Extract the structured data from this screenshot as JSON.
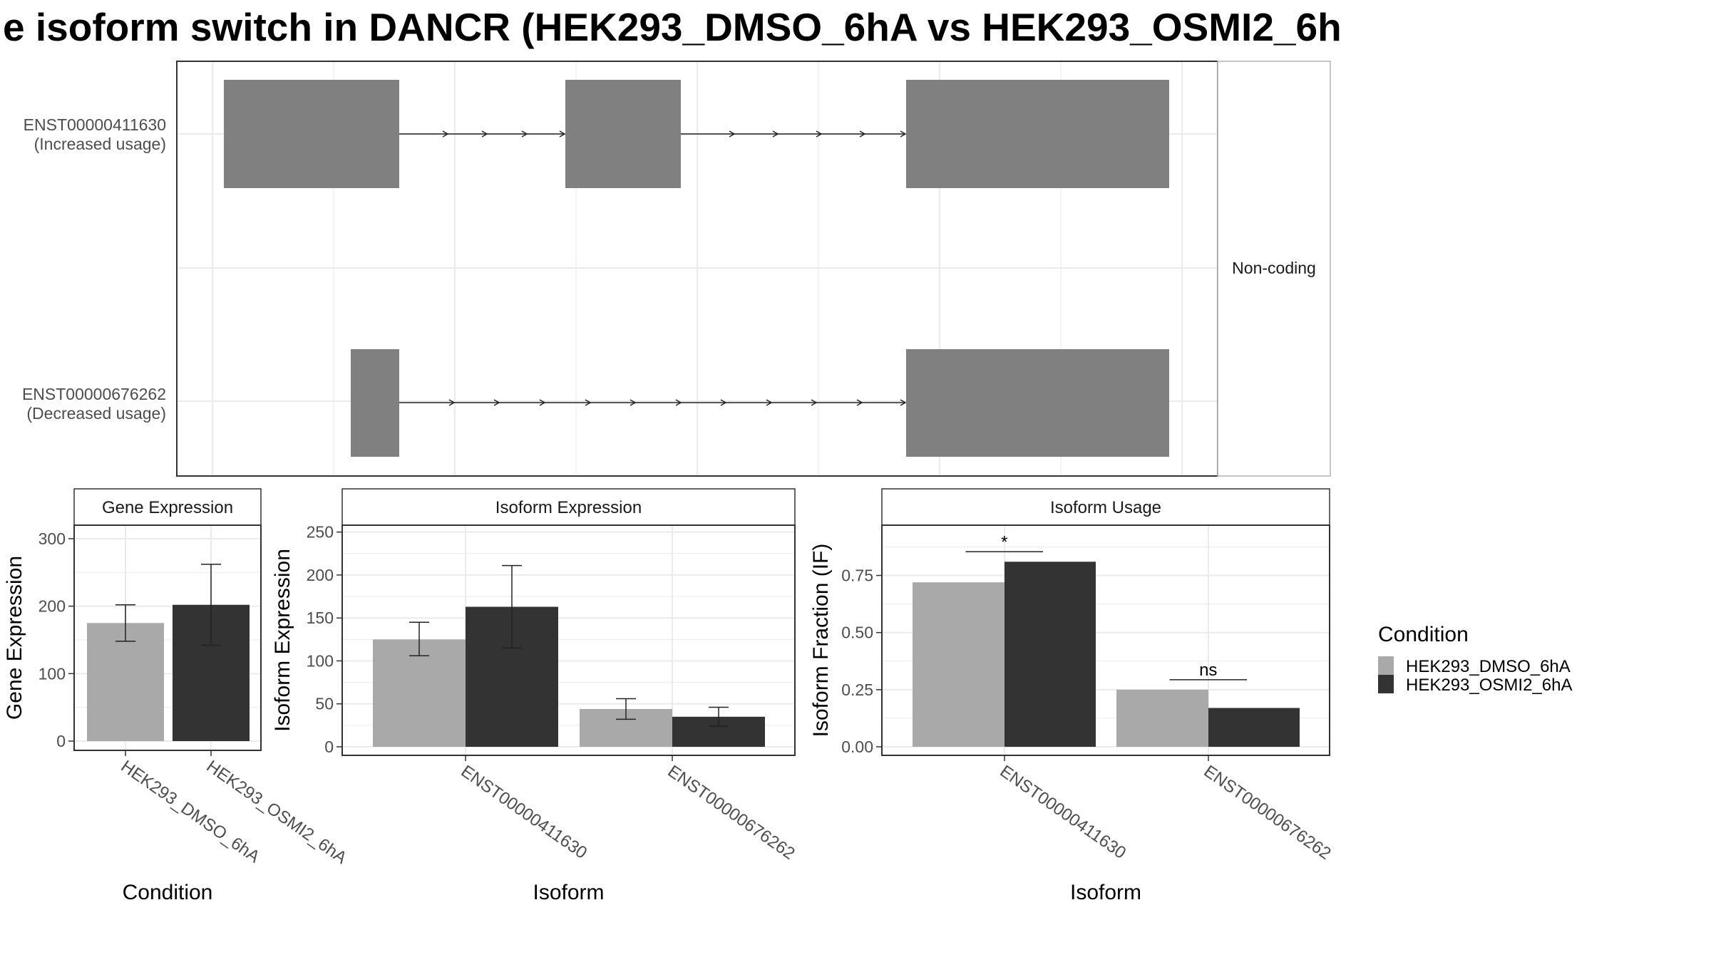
{
  "title": "e isoform switch in DANCR (HEK293_DMSO_6hA vs HEK293_OSMI2_6h",
  "colors": {
    "dmso": "#a9a9a9",
    "osmi": "#333333",
    "exon": "#808080",
    "grid": "#ebebeb",
    "panel_border": "#333333",
    "strip_border": "#b3b3b3"
  },
  "chart_data": [
    {
      "type": "gene-structure",
      "facet_label": "Non-coding",
      "isoforms": [
        {
          "id": "ENST00000411630",
          "note": "(Increased usage)"
        },
        {
          "id": "ENST00000676262",
          "note": "(Decreased usage)"
        }
      ]
    },
    {
      "type": "bar",
      "panel": "Gene Expression",
      "ylabel": "Gene Expression",
      "xlabel": "Condition",
      "ylim": [
        0,
        320
      ],
      "yticks": [
        0,
        100,
        200,
        300
      ],
      "categories": [
        "HEK293_DMSO_6hA",
        "HEK293_OSMI2_6hA"
      ],
      "values": [
        175,
        202
      ],
      "err_low": [
        148,
        142
      ],
      "err_high": [
        202,
        262
      ]
    },
    {
      "type": "bar",
      "panel": "Isoform Expression",
      "ylabel": "Isoform Expression",
      "xlabel": "Isoform",
      "ylim": [
        0,
        258
      ],
      "yticks": [
        0,
        50,
        100,
        150,
        200,
        250
      ],
      "categories": [
        "ENST00000411630",
        "ENST00000676262"
      ],
      "series": [
        {
          "name": "HEK293_DMSO_6hA",
          "values": [
            125,
            44
          ],
          "err_low": [
            106,
            32
          ],
          "err_high": [
            145,
            56
          ]
        },
        {
          "name": "HEK293_OSMI2_6hA",
          "values": [
            163,
            35
          ],
          "err_low": [
            115,
            24
          ],
          "err_high": [
            211,
            46
          ]
        }
      ]
    },
    {
      "type": "bar",
      "panel": "Isoform Usage",
      "ylabel": "Isoform Fraction (IF)",
      "xlabel": "Isoform",
      "ylim": [
        0,
        0.97
      ],
      "yticks": [
        "0.00",
        "0.25",
        "0.50",
        "0.75"
      ],
      "categories": [
        "ENST00000411630",
        "ENST00000676262"
      ],
      "series": [
        {
          "name": "HEK293_DMSO_6hA",
          "values": [
            0.72,
            0.25
          ]
        },
        {
          "name": "HEK293_OSMI2_6hA",
          "values": [
            0.81,
            0.17
          ]
        }
      ],
      "significance": [
        "*",
        "ns"
      ]
    }
  ],
  "legend": {
    "title": "Condition",
    "items": [
      "HEK293_DMSO_6hA",
      "HEK293_OSMI2_6hA"
    ]
  }
}
